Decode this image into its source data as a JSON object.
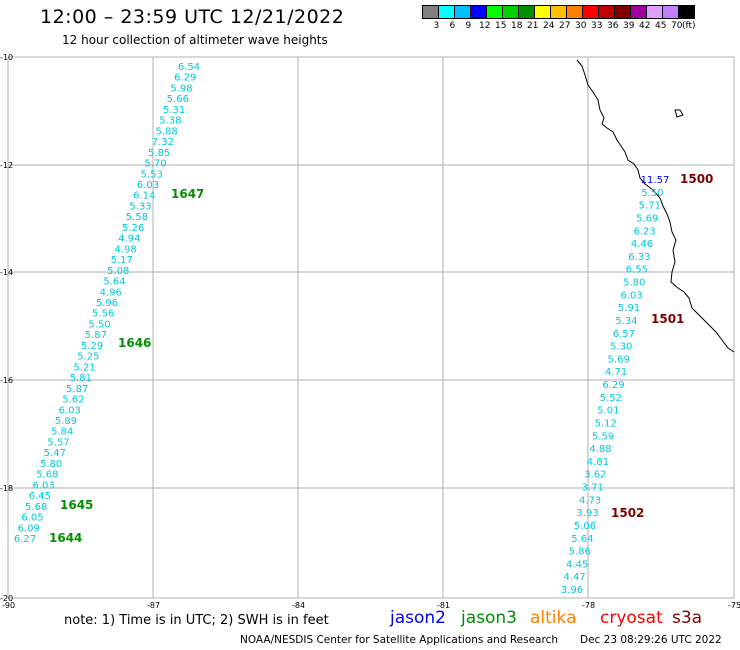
{
  "header": {
    "title": "12:00 – 23:59 UTC 12/21/2022",
    "subtitle": "12 hour collection of altimeter wave heights"
  },
  "scale": {
    "colors": [
      "#808080",
      "#00ffff",
      "#00c0ff",
      "#0000ff",
      "#00ff00",
      "#00d000",
      "#009000",
      "#ffff00",
      "#ffc000",
      "#ff8000",
      "#ff0000",
      "#c00000",
      "#800000",
      "#a000a0",
      "#e0a0ff",
      "#c080ff",
      "#000000"
    ],
    "labels": [
      "3",
      "6",
      "9",
      "12",
      "15",
      "18",
      "21",
      "24",
      "27",
      "30",
      "33",
      "36",
      "39",
      "42",
      "45",
      "70",
      "(ft)"
    ]
  },
  "axes": {
    "lat_labels": [
      "-10",
      "-12",
      "-14",
      "-16",
      "-18",
      "-20"
    ],
    "lon_labels": [
      "-90",
      "-87",
      "-84",
      "-81",
      "-78",
      "-75"
    ]
  },
  "tracks": {
    "west": [
      "6.54",
      "6.29",
      "5.98",
      "5.66",
      "5.31",
      "5.38",
      "5.88",
      "7.32",
      "5.85",
      "5.70",
      "5.53",
      "6.03",
      "6.14",
      "5.33",
      "5.58",
      "5.26",
      "4.94",
      "4.98",
      "5.17",
      "5.08",
      "5.64",
      "4.96",
      "5.96",
      "5.56",
      "5.50",
      "5.87",
      "5.29",
      "5.25",
      "5.21",
      "5.81",
      "5.87",
      "5.62",
      "6.03",
      "5.89",
      "5.84",
      "5.57",
      "5.47",
      "5.80",
      "5.68",
      "6.03",
      "6.45",
      "5.68",
      "6.05",
      "6.09",
      "6.27"
    ],
    "east": [
      "11.57",
      "5.50",
      "5.71",
      "5.69",
      "6.23",
      "4.46",
      "6.33",
      "6.55",
      "5.80",
      "6.03",
      "5.91",
      "5.34",
      "6.57",
      "5.30",
      "5.69",
      "4.71",
      "6.29",
      "5.52",
      "5.01",
      "5.12",
      "5.59",
      "4.88",
      "4.81",
      "3.62",
      "3.71",
      "4.73",
      "3.93",
      "5.06",
      "5.64",
      "5.86",
      "4.45",
      "4.47",
      "3.96"
    ]
  },
  "time_labels": {
    "west": [
      "1647",
      "1646",
      "1645",
      "1644"
    ],
    "east": [
      "1500",
      "1501",
      "1502"
    ]
  },
  "colors": {
    "track_value": "#00c8e0",
    "track_value_high": "#0000ff",
    "west_time": "#009000",
    "east_time": "#800000",
    "grid": "#b0b0b0",
    "coast": "#000000"
  },
  "note": "note: 1) Time is in UTC; 2) SWH is in feet",
  "legend": [
    {
      "label": "jason2",
      "color": "#0000ff"
    },
    {
      "label": "jason3",
      "color": "#009000"
    },
    {
      "label": "altika",
      "color": "#ff8000"
    },
    {
      "label": "cryosat",
      "color": "#ff0000"
    },
    {
      "label": "s3a",
      "color": "#800000"
    }
  ],
  "footer": {
    "center": "NOAA/NESDIS Center for Satellite Applications and Research",
    "timestamp": "Dec 23 08:29:26 UTC 2022"
  }
}
